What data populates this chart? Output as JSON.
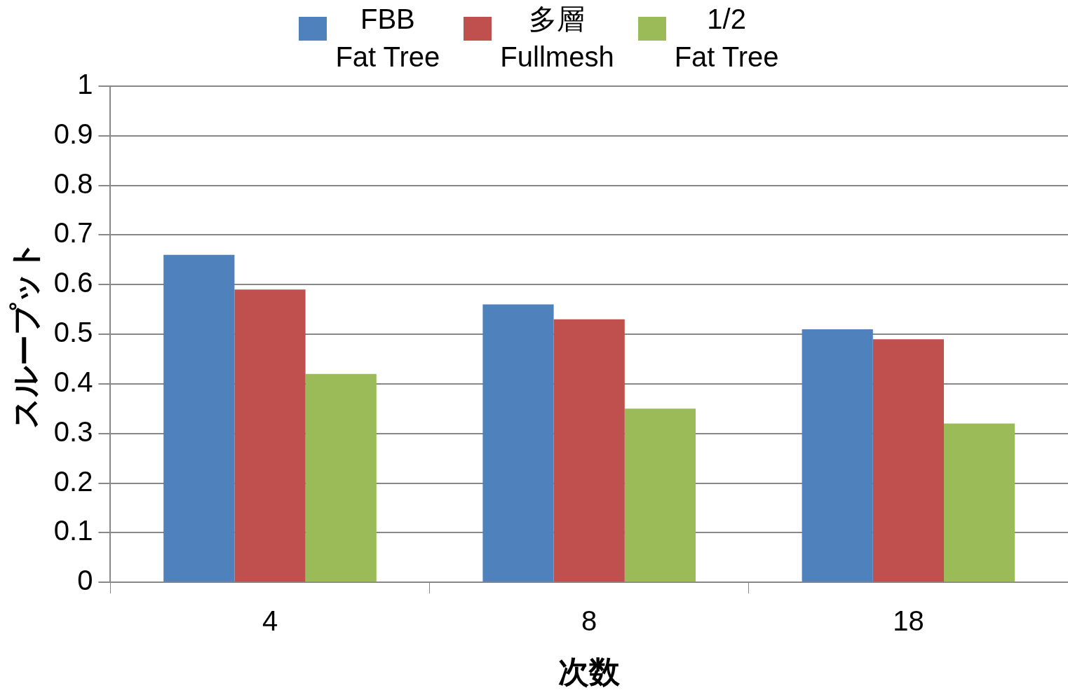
{
  "chart_data": {
    "type": "bar",
    "xlabel": "次数",
    "ylabel": "スループット",
    "categories": [
      "4",
      "8",
      "18"
    ],
    "series": [
      {
        "name": "FBB\nFat Tree",
        "color": "#4f81bd",
        "values": [
          0.66,
          0.56,
          0.51
        ]
      },
      {
        "name": "多層\nFullmesh",
        "color": "#c0504d",
        "values": [
          0.59,
          0.53,
          0.49
        ]
      },
      {
        "name": "1/2\nFat Tree",
        "color": "#9bbb59",
        "values": [
          0.42,
          0.35,
          0.32
        ]
      }
    ],
    "ylim": [
      0,
      1
    ],
    "yticks": [
      0,
      0.1,
      0.2,
      0.3,
      0.4,
      0.5,
      0.6,
      0.7,
      0.8,
      0.9,
      1
    ],
    "grid": "y",
    "legend": "top"
  }
}
